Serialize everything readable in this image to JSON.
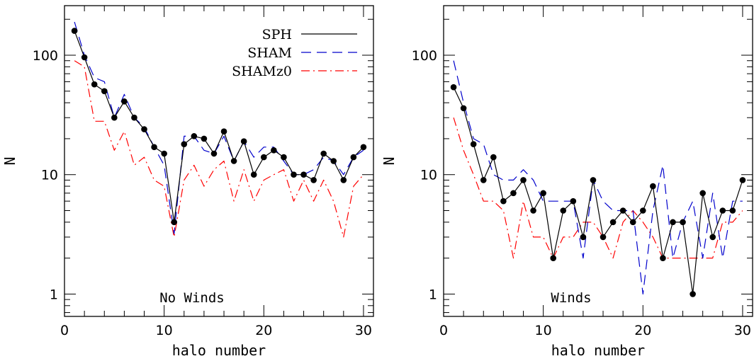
{
  "chart_data": [
    {
      "type": "line",
      "title": "",
      "annotation": "No Winds",
      "xlabel": "halo number",
      "ylabel": "N",
      "xlim": [
        0,
        31
      ],
      "ylim": [
        0.65,
        260
      ],
      "yscale": "log",
      "xticks": [
        0,
        10,
        20,
        30
      ],
      "yticks": [
        1,
        10,
        100
      ],
      "ytick_labels": [
        "1",
        "10",
        "100"
      ],
      "legend": "top-right",
      "x": [
        1,
        2,
        3,
        4,
        5,
        6,
        7,
        8,
        9,
        10,
        11,
        12,
        13,
        14,
        15,
        16,
        17,
        18,
        19,
        20,
        21,
        22,
        23,
        24,
        25,
        26,
        27,
        28,
        29,
        30
      ],
      "series": [
        {
          "name": "SPH",
          "color": "#000000",
          "style": "solid",
          "markers": true,
          "values": [
            160,
            96,
            57,
            50,
            30,
            41,
            30,
            24,
            17,
            15,
            4,
            18,
            21,
            20,
            15,
            23,
            13,
            19,
            10,
            14,
            16,
            14,
            10,
            10,
            9,
            15,
            13,
            9,
            14,
            17
          ]
        },
        {
          "name": "SHAM",
          "color": "#0000cc",
          "style": "dashed",
          "markers": false,
          "values": [
            190,
            100,
            65,
            60,
            30,
            47,
            30,
            25,
            17,
            12,
            3.2,
            21,
            21,
            16,
            15,
            21,
            13,
            19,
            14,
            17,
            17,
            13,
            10,
            10,
            11,
            14,
            13,
            10,
            14,
            16
          ]
        },
        {
          "name": "SHAMz0",
          "color": "#ff0000",
          "style": "dashdot",
          "markers": false,
          "values": [
            90,
            80,
            28,
            28,
            16,
            23,
            12,
            14,
            9,
            8,
            3,
            9,
            12,
            8,
            11,
            13,
            6,
            11,
            6,
            9,
            10,
            11,
            6,
            9,
            6,
            9,
            6,
            3,
            8,
            10
          ]
        }
      ]
    },
    {
      "type": "line",
      "title": "",
      "annotation": "Winds",
      "xlabel": "halo number",
      "ylabel": "N",
      "xlim": [
        0,
        31
      ],
      "ylim": [
        0.65,
        260
      ],
      "yscale": "log",
      "xticks": [
        0,
        10,
        20,
        30
      ],
      "yticks": [
        1,
        10,
        100
      ],
      "ytick_labels": [
        "1",
        "10",
        "100"
      ],
      "x": [
        1,
        2,
        3,
        4,
        5,
        6,
        7,
        8,
        9,
        10,
        11,
        12,
        13,
        14,
        15,
        16,
        17,
        18,
        19,
        20,
        21,
        22,
        23,
        24,
        25,
        26,
        27,
        28,
        29,
        30
      ],
      "series": [
        {
          "name": "SPH",
          "color": "#000000",
          "style": "solid",
          "markers": true,
          "values": [
            54,
            36,
            18,
            9,
            14,
            6,
            7,
            9,
            5,
            7,
            2,
            5,
            6,
            3,
            9,
            3,
            4,
            5,
            4,
            5,
            8,
            2,
            4,
            4,
            1,
            7,
            3,
            5,
            5,
            9
          ]
        },
        {
          "name": "SHAM",
          "color": "#0000cc",
          "style": "dashed",
          "markers": false,
          "values": [
            90,
            40,
            20,
            18,
            10,
            9,
            9,
            11,
            9,
            6,
            6,
            6,
            6,
            2,
            9,
            6,
            5,
            5,
            5,
            1,
            5,
            12,
            2,
            4,
            6,
            2,
            7,
            2,
            6,
            6
          ]
        },
        {
          "name": "SHAMz0",
          "color": "#ff0000",
          "style": "dashdot",
          "markers": false,
          "values": [
            30,
            16,
            10,
            6,
            6,
            5,
            2,
            6,
            3,
            3,
            2,
            3,
            3,
            4,
            4,
            3,
            2,
            4,
            5,
            4,
            3,
            2,
            2,
            2,
            2,
            2,
            2,
            4,
            4,
            5
          ]
        }
      ]
    }
  ]
}
